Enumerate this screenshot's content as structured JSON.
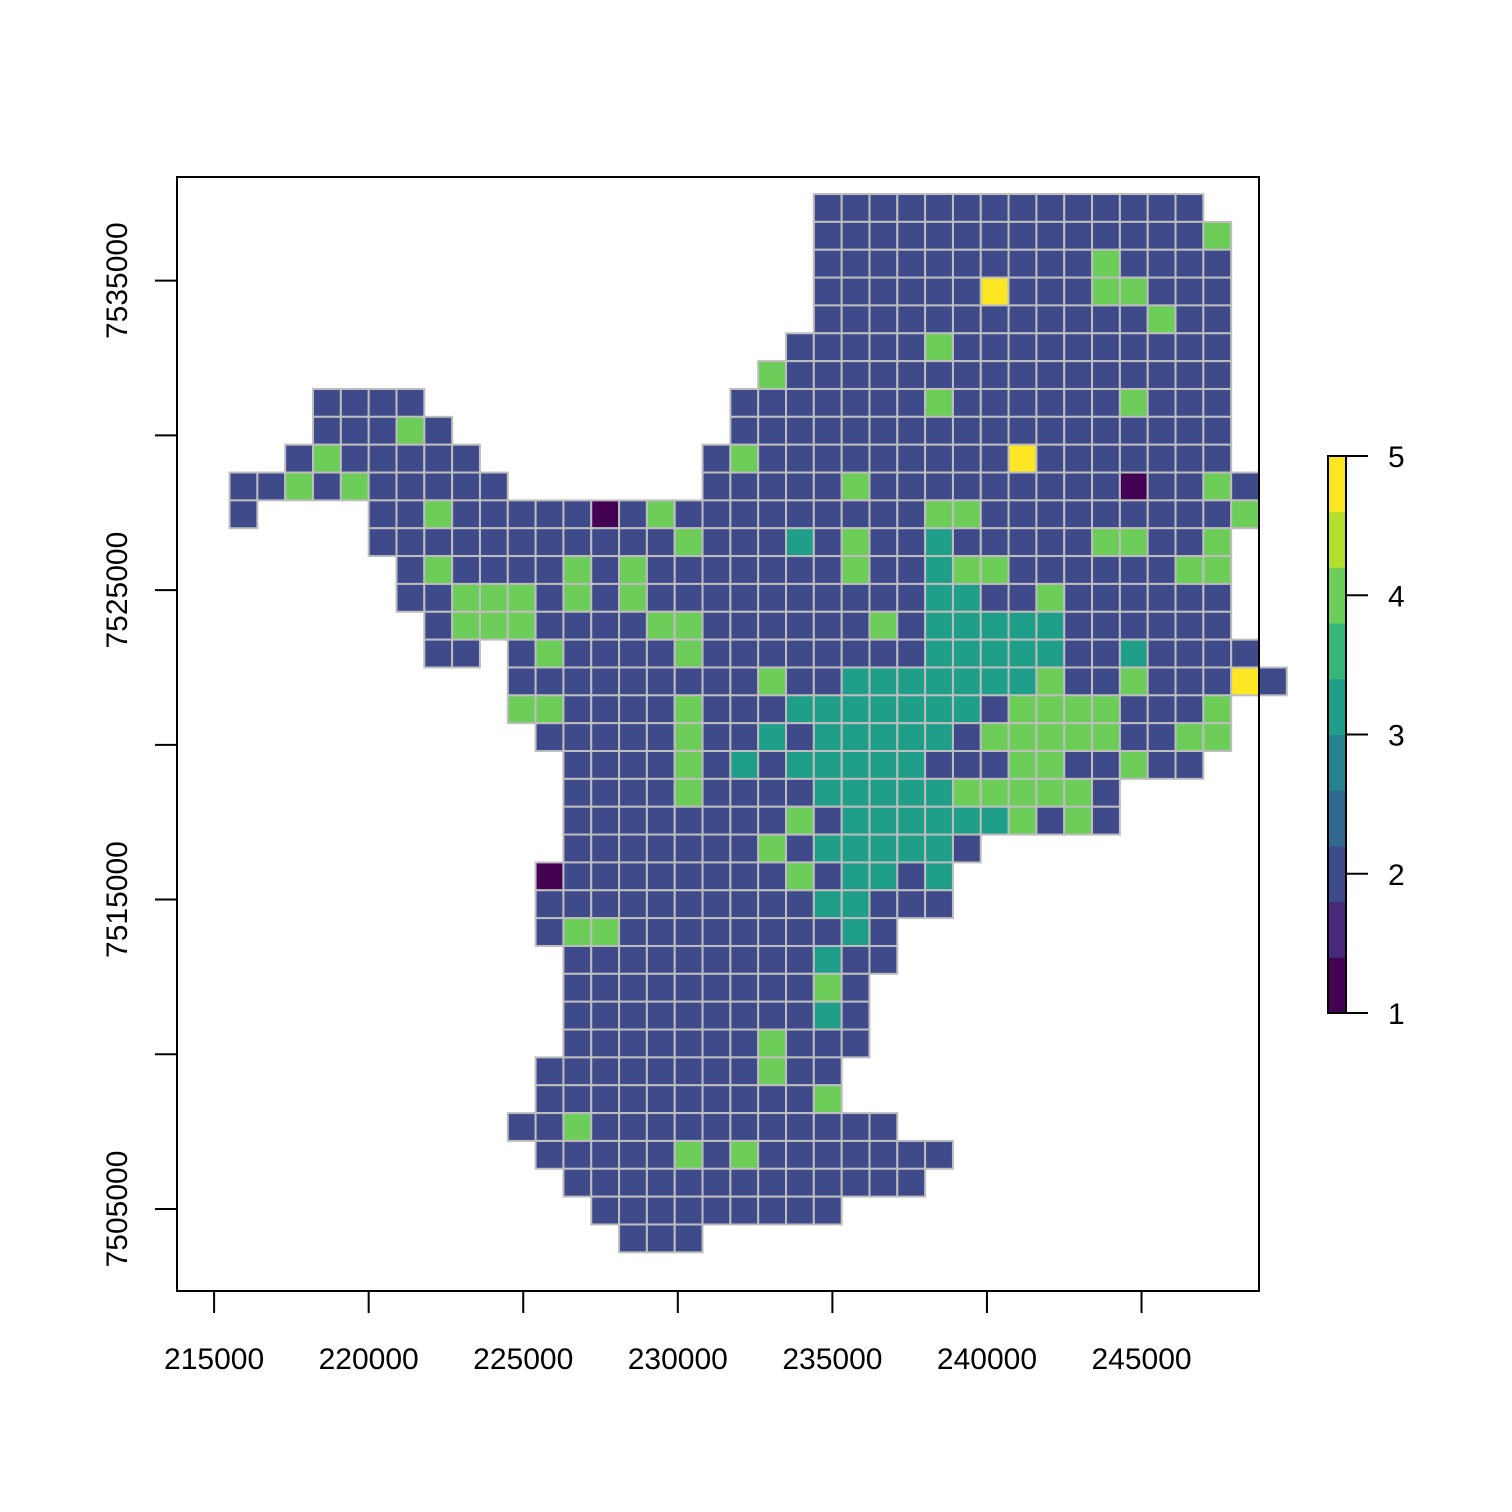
{
  "chart_data": {
    "type": "heatmap",
    "title": "",
    "xlabel": "",
    "ylabel": "",
    "cell_size": 900,
    "x_first_cell_center": 215950,
    "y_top_cell_center": 7537350,
    "xlim": [
      213800,
      248800
    ],
    "ylim": [
      7502350,
      7538350
    ],
    "x_ticks": [
      215000,
      220000,
      225000,
      230000,
      235000,
      240000,
      245000
    ],
    "x_tick_labels": [
      "215000",
      "220000",
      "225000",
      "230000",
      "235000",
      "240000",
      "245000"
    ],
    "y_ticks": [
      7505000,
      7510000,
      7515000,
      7520000,
      7525000,
      7530000,
      7535000
    ],
    "y_tick_labels": [
      "7505000",
      "",
      "7515000",
      "",
      "7525000",
      "",
      "7535000"
    ],
    "colorbar": {
      "range": [
        1,
        5
      ],
      "ticks": [
        1,
        2,
        3,
        4,
        5
      ],
      "tick_labels": [
        "1",
        "2",
        "3",
        "4",
        "5"
      ],
      "colors": [
        "#440154",
        "#482878",
        "#3E4A89",
        "#31688E",
        "#26828E",
        "#1F9E89",
        "#35B779",
        "#6DCD59",
        "#B4DE2C",
        "#FDE725"
      ]
    },
    "value_colors": {
      "1": "#440154",
      "2": "#3E4A89",
      "3": "#1F9E89",
      "4": "#6DCD59",
      "5": "#FDE725"
    },
    "grid_legend": "Each row string encodes one grid row from top (north) to bottom; each character is one 900 m cell from the western edge; '.' = no data, digits = cell value.",
    "rows": [
      ".....................22222222222222.",
      ".....................222222222222224",
      ".....................222222222242222",
      ".....................222222522244222",
      ".....................222222222222422",
      "....................2222242222222222",
      "...................42222222222222222",
      "...2222...........222222242222224222",
      "...22242..........222222222222222222",
      "..2422222........2422222222252222222",
      "2242422222.......22222422222222212242",
      "2....22422222124222222222442222222224",
      ".....2222222222242223242232222244224",
      "......242222424222222242234422222244",
      "......224442424222222222233224222222",
      ".......24442222442222224233333222222",
      ".......22.242222422222222333332232222",
      "..........2222222224223333333422422252",
      "..........44222242223333333244442224",
      "...........2222242232333332444442244",
      "............22224232333332224422422",
      "............22224222233333444442",
      "............22222222423333334242",
      "............222222242333332",
      "...........122222222423323",
      "...........222222222233222",
      "...........2442222222232",
      "............222222222322",
      "............22222222242",
      "............22222222232",
      "............22222224222",
      "...........22222222422",
      "...........22222222224",
      "..........22422222222222",
      "...........222224242222222",
      "............2222222222222",
      ".............222222222",
      "..............222"
    ]
  }
}
